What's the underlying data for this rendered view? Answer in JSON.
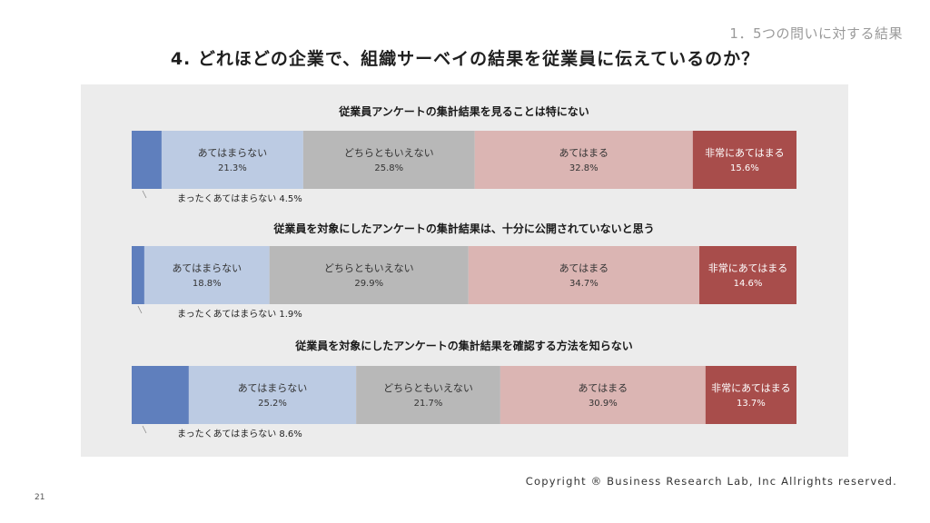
{
  "header": {
    "section_label": "1．5つの問いに対する結果",
    "title": "4. どれほどの企業で、組織サーベイの結果を従業員に伝えているのか？"
  },
  "footer": {
    "copyright": "Copyright ® Business Research Lab, Inc Allrights reserved.",
    "page_number": "21"
  },
  "colors": {
    "panel_bg": "#ececec",
    "segments": [
      "#5f7fbd",
      "#bccbe3",
      "#b8b8b8",
      "#dbb5b3",
      "#a84d4b"
    ]
  },
  "chart_data": {
    "type": "bar",
    "orientation": "horizontal",
    "stacked": true,
    "normalized": true,
    "categories": [
      "従業員アンケートの集計結果を見ることは特にない",
      "従業員を対象にしたアンケートの集計結果は、十分に公開されていないと思う",
      "従業員を対象にしたアンケートの集計結果を確認する方法を知らない"
    ],
    "series": [
      {
        "name": "まったくあてはまらない",
        "values": [
          4.5,
          1.9,
          8.6
        ]
      },
      {
        "name": "あてはまらない",
        "values": [
          21.3,
          18.8,
          25.2
        ]
      },
      {
        "name": "どちらともいえない",
        "values": [
          25.8,
          29.9,
          21.7
        ]
      },
      {
        "name": "あてはまる",
        "values": [
          32.8,
          34.7,
          30.9
        ]
      },
      {
        "name": "非常にあてはまる",
        "values": [
          15.6,
          14.6,
          13.7
        ]
      }
    ],
    "value_suffix": "%"
  }
}
